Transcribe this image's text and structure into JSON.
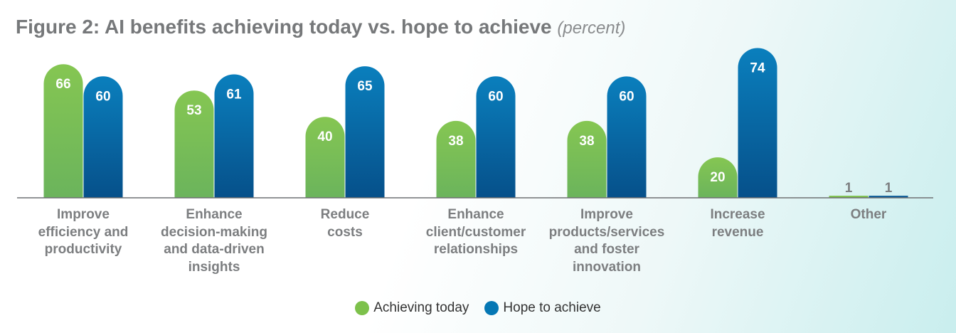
{
  "chart_data": {
    "type": "bar",
    "title": "Figure 2: AI benefits achieving today vs. hope to achieve",
    "subtitle": "(percent)",
    "categories": [
      [
        "Improve",
        "efficiency and",
        "productivity"
      ],
      [
        "Enhance",
        "decision-making",
        "and data-driven",
        "insights"
      ],
      [
        "Reduce",
        "costs"
      ],
      [
        "Enhance",
        "client/customer",
        "relationships"
      ],
      [
        "Improve",
        "products/services",
        "and foster",
        "innovation"
      ],
      [
        "Increase",
        "revenue"
      ],
      [
        "Other"
      ]
    ],
    "series": [
      {
        "name": "Achieving today",
        "color": "#7dc14b",
        "values": [
          66,
          53,
          40,
          38,
          38,
          20,
          1
        ]
      },
      {
        "name": "Hope to achieve",
        "color": "#0577b4",
        "values": [
          60,
          61,
          65,
          60,
          60,
          74,
          1
        ]
      }
    ],
    "ylim": [
      0,
      74
    ],
    "xlabel": "",
    "ylabel": ""
  }
}
